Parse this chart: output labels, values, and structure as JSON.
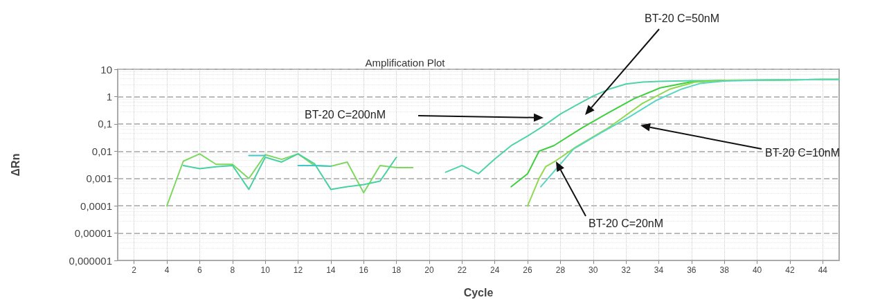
{
  "chart_data": {
    "type": "line",
    "title": "Amplification Plot",
    "xlabel": "Cycle",
    "ylabel": "ΔRn",
    "log": "y",
    "grid": true,
    "marker": "none",
    "line_style": "solid",
    "xlim": [
      1,
      45
    ],
    "xticks": [
      2,
      4,
      6,
      8,
      10,
      12,
      14,
      16,
      18,
      20,
      22,
      24,
      26,
      28,
      30,
      32,
      34,
      36,
      38,
      40,
      42,
      44
    ],
    "ylim": [
      1e-06,
      10
    ],
    "yticks": [
      {
        "value": 1e-06,
        "label": "0,000001"
      },
      {
        "value": 1e-05,
        "label": "0,00001"
      },
      {
        "value": 0.0001,
        "label": "0,0001"
      },
      {
        "value": 0.001,
        "label": "0,001"
      },
      {
        "value": 0.01,
        "label": "0,01"
      },
      {
        "value": 0.1,
        "label": "0,1"
      },
      1,
      10
    ],
    "series": [
      {
        "color": "#7dd860",
        "x": [
          4,
          5,
          6,
          7,
          8,
          9,
          10,
          11,
          12,
          13,
          14,
          15,
          16,
          17,
          18,
          19
        ],
        "values": [
          0.0001,
          0.0043,
          0.008,
          0.0033,
          0.0033,
          0.001,
          0.0075,
          0.005,
          0.008,
          0.003,
          0.0028,
          0.004,
          0.0003,
          0.003,
          0.0025,
          0.0025
        ]
      },
      {
        "color": "#48d1a0",
        "x": [
          5,
          6,
          7,
          8,
          9,
          10,
          11,
          12,
          13,
          14,
          15,
          16,
          17,
          18
        ],
        "values": [
          0.003,
          0.0023,
          0.0027,
          0.003,
          0.0004,
          0.006,
          0.004,
          0.008,
          0.0035,
          0.0004,
          0.0005,
          0.0006,
          0.0008,
          0.006
        ]
      },
      {
        "color": "#40c8c8",
        "x": [
          9,
          10,
          11,
          12,
          13,
          14
        ],
        "values": [
          0.007,
          0.007,
          null,
          0.003,
          0.003,
          0.0028
        ]
      },
      {
        "color": "#4fd3a8",
        "x": [
          21,
          22,
          23,
          24,
          25,
          26,
          27,
          28,
          29,
          30,
          31,
          32,
          33,
          34,
          36,
          38,
          40,
          42,
          44,
          45
        ],
        "values": [
          0.0017,
          0.003,
          0.0015,
          0.0052,
          0.016,
          0.036,
          0.086,
          0.23,
          0.5,
          1.05,
          1.9,
          2.9,
          3.4,
          3.6,
          3.8,
          3.9,
          4,
          4.1,
          4.2,
          4.2
        ]
      },
      {
        "color": "#3ecf3e",
        "x": [
          25,
          26,
          26.7,
          27.6,
          29.3,
          30.9,
          32.5,
          34.1,
          35.9,
          38,
          40,
          42,
          44,
          45
        ],
        "values": [
          0.0005,
          0.0015,
          0.01,
          0.016,
          0.07,
          0.25,
          0.84,
          2.1,
          3.4,
          3.9,
          4,
          4.1,
          4.2,
          4.2
        ]
      },
      {
        "color": "#8fd94f",
        "x": [
          26,
          26.7,
          27.1,
          27.6,
          29,
          30.9,
          33,
          34.7,
          36.2,
          38,
          40,
          42,
          44,
          45
        ],
        "values": [
          0.0001,
          0.001,
          0.0027,
          0.004,
          0.015,
          0.07,
          0.56,
          1.9,
          3.4,
          3.9,
          4,
          4.1,
          4.2,
          4.2
        ]
      },
      {
        "color": "#5ad6c0",
        "x": [
          26.8,
          28.8,
          30.5,
          32.2,
          33.8,
          35.4,
          36.5,
          38,
          40,
          42,
          44,
          45
        ],
        "values": [
          0.0005,
          0.012,
          0.048,
          0.18,
          0.7,
          1.9,
          3,
          3.7,
          4,
          4.1,
          4.2,
          4.2
        ]
      }
    ],
    "annotations": [
      "BT-20 C=200nM",
      "BT-20 C=50nM",
      "BT-20 C=10nM",
      "BT-20 C=20nM"
    ]
  }
}
